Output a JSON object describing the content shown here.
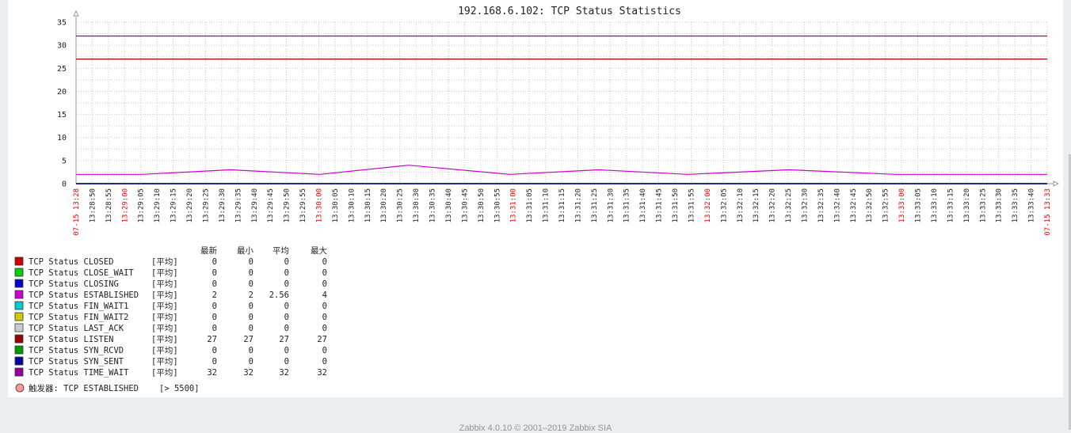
{
  "footer_text": "Zabbix 4.0.10 © 2001–2019 Zabbix SIA",
  "chart_data": {
    "type": "line",
    "title": "192.168.6.102: TCP Status Statistics",
    "ylim": [
      0,
      35
    ],
    "yticks": [
      0,
      5,
      10,
      15,
      20,
      25,
      30,
      35
    ],
    "grid": true,
    "x_unit": "time",
    "x_start_label": "07-15 13:28",
    "x_end_label": "07-15 13:33",
    "x_ticks": [
      "13:28:50",
      "13:28:55",
      "13:29:00",
      "13:29:05",
      "13:29:10",
      "13:29:15",
      "13:29:20",
      "13:29:25",
      "13:29:30",
      "13:29:35",
      "13:29:40",
      "13:29:45",
      "13:29:50",
      "13:29:55",
      "13:30:00",
      "13:30:05",
      "13:30:10",
      "13:30:15",
      "13:30:20",
      "13:30:25",
      "13:30:30",
      "13:30:35",
      "13:30:40",
      "13:30:45",
      "13:30:50",
      "13:30:55",
      "13:31:00",
      "13:31:05",
      "13:31:10",
      "13:31:15",
      "13:31:20",
      "13:31:25",
      "13:31:30",
      "13:31:35",
      "13:31:40",
      "13:31:45",
      "13:31:50",
      "13:31:55",
      "13:32:00",
      "13:32:05",
      "13:32:10",
      "13:32:15",
      "13:32:20",
      "13:32:25",
      "13:32:30",
      "13:32:35",
      "13:32:40",
      "13:32:45",
      "13:32:50",
      "13:32:55",
      "13:33:00",
      "13:33:05",
      "13:33:10",
      "13:33:15",
      "13:33:20",
      "13:33:25",
      "13:33:30",
      "13:33:35",
      "13:33:40"
    ],
    "x_ticks_highlight": [
      "13:29:00",
      "13:30:00",
      "13:31:00",
      "13:32:00",
      "13:33:00"
    ],
    "x_range_seconds": [
      0,
      327
    ],
    "legend_headers": [
      "最新",
      "最小",
      "平均",
      "最大"
    ],
    "series": [
      {
        "name": "TCP Status CLOSED",
        "func": "[平均]",
        "color": "#cc0000",
        "last": "0",
        "min": "0",
        "avg": "0",
        "max": "0",
        "x": [
          0,
          327
        ],
        "y": [
          0,
          0
        ]
      },
      {
        "name": "TCP Status CLOSE_WAIT",
        "func": "[平均]",
        "color": "#00cc00",
        "last": "0",
        "min": "0",
        "avg": "0",
        "max": "0",
        "x": [
          0,
          327
        ],
        "y": [
          0,
          0
        ]
      },
      {
        "name": "TCP Status CLOSING",
        "func": "[平均]",
        "color": "#0000cc",
        "last": "0",
        "min": "0",
        "avg": "0",
        "max": "0",
        "x": [
          0,
          327
        ],
        "y": [
          0,
          0
        ]
      },
      {
        "name": "TCP Status ESTABLISHED",
        "func": "[平均]",
        "color": "#cc00cc",
        "last": "2",
        "min": "2",
        "avg": "2.56",
        "max": "4",
        "x": [
          0,
          22,
          52,
          82,
          112,
          146,
          176,
          206,
          240,
          276,
          306,
          327
        ],
        "y": [
          2,
          2,
          3,
          2,
          4,
          2,
          3,
          2,
          3,
          2,
          2,
          2
        ]
      },
      {
        "name": "TCP Status FIN_WAIT1",
        "func": "[平均]",
        "color": "#00cccc",
        "last": "0",
        "min": "0",
        "avg": "0",
        "max": "0",
        "x": [
          0,
          327
        ],
        "y": [
          0,
          0
        ]
      },
      {
        "name": "TCP Status FIN_WAIT2",
        "func": "[平均]",
        "color": "#cccc00",
        "last": "0",
        "min": "0",
        "avg": "0",
        "max": "0",
        "x": [
          0,
          327
        ],
        "y": [
          0,
          0
        ]
      },
      {
        "name": "TCP Status LAST_ACK",
        "func": "[平均]",
        "color": "#cccccc",
        "last": "0",
        "min": "0",
        "avg": "0",
        "max": "0",
        "x": [
          0,
          327
        ],
        "y": [
          0,
          0
        ]
      },
      {
        "name": "TCP Status LISTEN",
        "func": "[平均]",
        "color": "#990000",
        "last": "27",
        "min": "27",
        "avg": "27",
        "max": "27",
        "x": [
          0,
          327
        ],
        "y": [
          27,
          27
        ]
      },
      {
        "name": "TCP Status SYN_RCVD",
        "func": "[平均]",
        "color": "#009900",
        "last": "0",
        "min": "0",
        "avg": "0",
        "max": "0",
        "x": [
          0,
          327
        ],
        "y": [
          0,
          0
        ]
      },
      {
        "name": "TCP Status SYN_SENT",
        "func": "[平均]",
        "color": "#000099",
        "last": "0",
        "min": "0",
        "avg": "0",
        "max": "0",
        "x": [
          0,
          327
        ],
        "y": [
          0,
          0
        ]
      },
      {
        "name": "TCP Status TIME_WAIT",
        "func": "[平均]",
        "color": "#990099",
        "last": "32",
        "min": "32",
        "avg": "32",
        "max": "32",
        "x": [
          0,
          327
        ],
        "y": [
          32,
          32
        ]
      }
    ],
    "trigger": {
      "label": "触发器: TCP  ESTABLISHED",
      "condition": "[> 5500]",
      "color": "#ff9999"
    }
  }
}
